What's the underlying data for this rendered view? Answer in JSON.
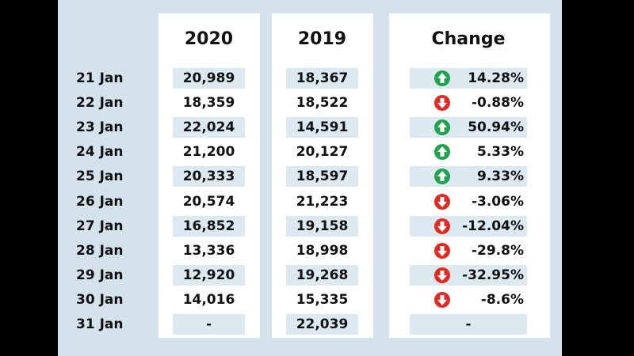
{
  "headers": {
    "col2020": "2020",
    "col2019": "2019",
    "change": "Change"
  },
  "rows": [
    {
      "date": "21 Jan",
      "v2020": "20,989",
      "v2019": "18,367",
      "change": "14.28%",
      "direction": "up"
    },
    {
      "date": "22 Jan",
      "v2020": "18,359",
      "v2019": "18,522",
      "change": "-0.88%",
      "direction": "down"
    },
    {
      "date": "23 Jan",
      "v2020": "22,024",
      "v2019": "14,591",
      "change": "50.94%",
      "direction": "up"
    },
    {
      "date": "24 Jan",
      "v2020": "21,200",
      "v2019": "20,127",
      "change": "5.33%",
      "direction": "up"
    },
    {
      "date": "25 Jan",
      "v2020": "20,333",
      "v2019": "18,597",
      "change": "9.33%",
      "direction": "up"
    },
    {
      "date": "26 Jan",
      "v2020": "20,574",
      "v2019": "21,223",
      "change": "-3.06%",
      "direction": "down"
    },
    {
      "date": "27 Jan",
      "v2020": "16,852",
      "v2019": "19,158",
      "change": "-12.04%",
      "direction": "down"
    },
    {
      "date": "28 Jan",
      "v2020": "13,336",
      "v2019": "18,998",
      "change": "-29.8%",
      "direction": "down"
    },
    {
      "date": "29 Jan",
      "v2020": "12,920",
      "v2019": "19,268",
      "change": "-32.95%",
      "direction": "down"
    },
    {
      "date": "30 Jan",
      "v2020": "14,016",
      "v2019": "15,335",
      "change": "-8.6%",
      "direction": "down"
    },
    {
      "date": "31 Jan",
      "v2020": "-",
      "v2019": "22,039",
      "change": "-",
      "direction": "none"
    }
  ],
  "colors": {
    "up": "#1ea54b",
    "down": "#e32a22",
    "shade": "#dce9f0",
    "panel": "#d4e3eb"
  }
}
